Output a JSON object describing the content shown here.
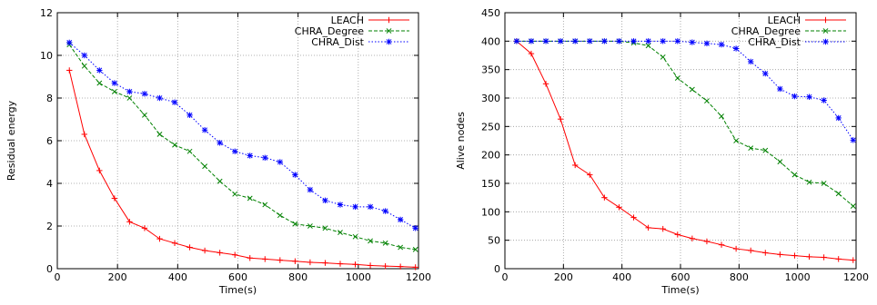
{
  "chart_data": [
    {
      "type": "line",
      "xlabel": "Time(s)",
      "ylabel": "Residual energy",
      "xlim": [
        0,
        1200
      ],
      "ylim": [
        0,
        12
      ],
      "xticks": [
        0,
        200,
        400,
        600,
        800,
        1000,
        1200
      ],
      "yticks": [
        0,
        2,
        4,
        6,
        8,
        10,
        12
      ],
      "grid": true,
      "legend_position": "top-right",
      "series": [
        {
          "name": "LEACH",
          "color": "#ff0000",
          "marker": "plus",
          "dash": "solid",
          "x": [
            40,
            90,
            140,
            190,
            240,
            290,
            340,
            390,
            440,
            490,
            540,
            590,
            640,
            690,
            740,
            790,
            840,
            890,
            940,
            990,
            1040,
            1090,
            1140,
            1190
          ],
          "y": [
            9.3,
            6.3,
            4.6,
            3.3,
            2.2,
            1.9,
            1.4,
            1.2,
            1.0,
            0.85,
            0.75,
            0.65,
            0.5,
            0.45,
            0.4,
            0.35,
            0.3,
            0.27,
            0.23,
            0.2,
            0.15,
            0.12,
            0.1,
            0.07
          ]
        },
        {
          "name": "CHRA_Degree",
          "color": "#008000",
          "marker": "x",
          "dash": "dashed",
          "x": [
            40,
            90,
            140,
            190,
            240,
            290,
            340,
            390,
            440,
            490,
            540,
            590,
            640,
            690,
            740,
            790,
            840,
            890,
            940,
            990,
            1040,
            1090,
            1140,
            1190
          ],
          "y": [
            10.5,
            9.5,
            8.7,
            8.3,
            8.0,
            7.2,
            6.3,
            5.8,
            5.5,
            4.8,
            4.1,
            3.5,
            3.3,
            3.0,
            2.5,
            2.1,
            2.0,
            1.9,
            1.7,
            1.5,
            1.3,
            1.2,
            1.0,
            0.9
          ]
        },
        {
          "name": "CHRA_Dist",
          "color": "#0000ff",
          "marker": "asterisk",
          "dash": "dotted",
          "x": [
            40,
            90,
            140,
            190,
            240,
            290,
            340,
            390,
            440,
            490,
            540,
            590,
            640,
            690,
            740,
            790,
            840,
            890,
            940,
            990,
            1040,
            1090,
            1140,
            1190
          ],
          "y": [
            10.6,
            10.0,
            9.3,
            8.7,
            8.3,
            8.2,
            8.0,
            7.8,
            7.2,
            6.5,
            5.9,
            5.5,
            5.3,
            5.2,
            5.0,
            4.4,
            3.7,
            3.2,
            3.0,
            2.9,
            2.9,
            2.7,
            2.3,
            1.9
          ]
        }
      ]
    },
    {
      "type": "line",
      "xlabel": "Time(s)",
      "ylabel": "Alive nodes",
      "xlim": [
        0,
        1200
      ],
      "ylim": [
        0,
        450
      ],
      "xticks": [
        0,
        200,
        400,
        600,
        800,
        1000,
        1200
      ],
      "yticks": [
        0,
        50,
        100,
        150,
        200,
        250,
        300,
        350,
        400,
        450
      ],
      "grid": true,
      "legend_position": "top-right",
      "series": [
        {
          "name": "LEACH",
          "color": "#ff0000",
          "marker": "plus",
          "dash": "solid",
          "x": [
            40,
            90,
            140,
            190,
            240,
            290,
            340,
            390,
            440,
            490,
            540,
            590,
            640,
            690,
            740,
            790,
            840,
            890,
            940,
            990,
            1040,
            1090,
            1140,
            1190
          ],
          "y": [
            400,
            378,
            325,
            263,
            182,
            165,
            125,
            108,
            90,
            72,
            70,
            60,
            53,
            48,
            42,
            35,
            32,
            28,
            25,
            23,
            21,
            20,
            17,
            15
          ]
        },
        {
          "name": "CHRA_Degree",
          "color": "#008000",
          "marker": "x",
          "dash": "dashed",
          "x": [
            40,
            90,
            140,
            190,
            240,
            290,
            340,
            390,
            440,
            490,
            540,
            590,
            640,
            690,
            740,
            790,
            840,
            890,
            940,
            990,
            1040,
            1090,
            1140,
            1190
          ],
          "y": [
            400,
            400,
            400,
            400,
            400,
            400,
            400,
            400,
            397,
            392,
            372,
            335,
            315,
            295,
            268,
            225,
            212,
            208,
            188,
            165,
            152,
            150,
            132,
            110
          ]
        },
        {
          "name": "CHRA_Dist",
          "color": "#0000ff",
          "marker": "asterisk",
          "dash": "dotted",
          "x": [
            40,
            90,
            140,
            190,
            240,
            290,
            340,
            390,
            440,
            490,
            540,
            590,
            640,
            690,
            740,
            790,
            840,
            890,
            940,
            990,
            1040,
            1090,
            1140,
            1190
          ],
          "y": [
            400,
            400,
            400,
            400,
            400,
            400,
            400,
            400,
            400,
            400,
            400,
            400,
            398,
            396,
            394,
            387,
            364,
            343,
            316,
            303,
            302,
            296,
            265,
            226
          ]
        }
      ]
    }
  ]
}
